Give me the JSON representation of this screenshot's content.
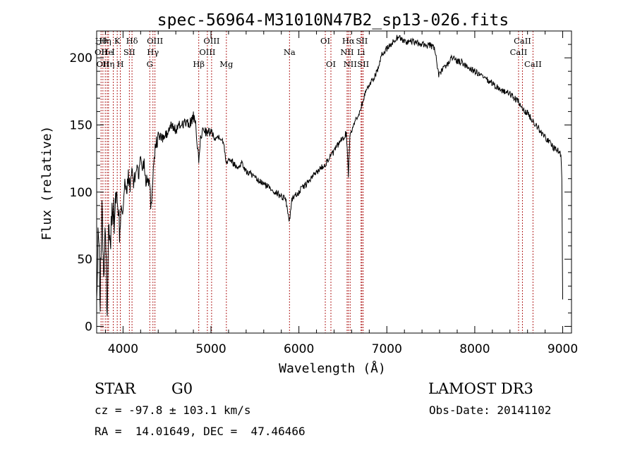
{
  "chart_data": {
    "type": "line",
    "title": "spec-56964-M31010N47B2_sp13-026.fits",
    "xlabel": "Wavelength (Å)",
    "ylabel": "Flux (relative)",
    "xlim": [
      3700,
      9100
    ],
    "ylim": [
      -5,
      220
    ],
    "xticks": [
      4000,
      5000,
      6000,
      7000,
      8000,
      9000
    ],
    "yticks": [
      0,
      50,
      100,
      150,
      200
    ],
    "grid": false,
    "line_color": "#000000",
    "marker_color": "#b22222",
    "series": [
      {
        "name": "flux",
        "points": [
          [
            3700,
            15
          ],
          [
            3720,
            75
          ],
          [
            3740,
            22
          ],
          [
            3760,
            90
          ],
          [
            3780,
            40
          ],
          [
            3800,
            68
          ],
          [
            3820,
            12
          ],
          [
            3840,
            82
          ],
          [
            3860,
            65
          ],
          [
            3880,
            93
          ],
          [
            3900,
            78
          ],
          [
            3920,
            100
          ],
          [
            3940,
            84
          ],
          [
            3960,
            72
          ],
          [
            3980,
            95
          ],
          [
            4000,
            88
          ],
          [
            4020,
            106
          ],
          [
            4040,
            98
          ],
          [
            4060,
            113
          ],
          [
            4080,
            102
          ],
          [
            4100,
            118
          ],
          [
            4120,
            106
          ],
          [
            4140,
            112
          ],
          [
            4160,
            122
          ],
          [
            4180,
            112
          ],
          [
            4200,
            127
          ],
          [
            4220,
            118
          ],
          [
            4240,
            123
          ],
          [
            4260,
            108
          ],
          [
            4280,
            113
          ],
          [
            4300,
            107
          ],
          [
            4320,
            88
          ],
          [
            4340,
            115
          ],
          [
            4360,
            131
          ],
          [
            4380,
            136
          ],
          [
            4400,
            142
          ],
          [
            4450,
            140
          ],
          [
            4500,
            143
          ],
          [
            4550,
            150
          ],
          [
            4600,
            146
          ],
          [
            4650,
            150
          ],
          [
            4700,
            152
          ],
          [
            4750,
            150
          ],
          [
            4800,
            156
          ],
          [
            4830,
            148
          ],
          [
            4861,
            121
          ],
          [
            4880,
            140
          ],
          [
            4920,
            148
          ],
          [
            4960,
            143
          ],
          [
            5000,
            146
          ],
          [
            5050,
            140
          ],
          [
            5100,
            142
          ],
          [
            5150,
            135
          ],
          [
            5175,
            121
          ],
          [
            5200,
            126
          ],
          [
            5250,
            122
          ],
          [
            5300,
            118
          ],
          [
            5350,
            122
          ],
          [
            5400,
            115
          ],
          [
            5450,
            114
          ],
          [
            5500,
            110
          ],
          [
            5550,
            108
          ],
          [
            5600,
            106
          ],
          [
            5650,
            104
          ],
          [
            5700,
            102
          ],
          [
            5750,
            99
          ],
          [
            5800,
            97
          ],
          [
            5850,
            95
          ],
          [
            5893,
            78
          ],
          [
            5920,
            95
          ],
          [
            5950,
            97
          ],
          [
            6000,
            100
          ],
          [
            6050,
            104
          ],
          [
            6100,
            107
          ],
          [
            6150,
            111
          ],
          [
            6200,
            115
          ],
          [
            6250,
            118
          ],
          [
            6300,
            121
          ],
          [
            6350,
            126
          ],
          [
            6400,
            130
          ],
          [
            6450,
            136
          ],
          [
            6500,
            140
          ],
          [
            6540,
            144
          ],
          [
            6563,
            113
          ],
          [
            6580,
            143
          ],
          [
            6620,
            150
          ],
          [
            6660,
            155
          ],
          [
            6700,
            162
          ],
          [
            6730,
            168
          ],
          [
            6760,
            175
          ],
          [
            6800,
            180
          ],
          [
            6850,
            185
          ],
          [
            6900,
            192
          ],
          [
            6950,
            203
          ],
          [
            7000,
            207
          ],
          [
            7050,
            210
          ],
          [
            7100,
            214
          ],
          [
            7130,
            216
          ],
          [
            7200,
            212
          ],
          [
            7300,
            212
          ],
          [
            7400,
            210
          ],
          [
            7500,
            209
          ],
          [
            7550,
            206
          ],
          [
            7590,
            186
          ],
          [
            7650,
            193
          ],
          [
            7700,
            196
          ],
          [
            7750,
            201
          ],
          [
            7800,
            197
          ],
          [
            7850,
            197
          ],
          [
            7900,
            194
          ],
          [
            7950,
            192
          ],
          [
            8000,
            190
          ],
          [
            8100,
            185
          ],
          [
            8200,
            181
          ],
          [
            8300,
            176
          ],
          [
            8400,
            173
          ],
          [
            8500,
            167
          ],
          [
            8542,
            161
          ],
          [
            8600,
            159
          ],
          [
            8662,
            153
          ],
          [
            8700,
            150
          ],
          [
            8750,
            145
          ],
          [
            8800,
            141
          ],
          [
            8850,
            137
          ],
          [
            8900,
            133
          ],
          [
            8950,
            131
          ],
          [
            8980,
            128
          ],
          [
            8990,
            108
          ],
          [
            9000,
            20
          ]
        ]
      }
    ],
    "line_markers": [
      {
        "wavelength": 3750,
        "labels": [
          {
            "row": 1,
            "text": "Hθ"
          },
          {
            "row": 2,
            "text": "OII"
          }
        ]
      },
      {
        "wavelength": 3771,
        "labels": [
          {
            "row": 3,
            "text": "OII"
          }
        ]
      },
      {
        "wavelength": 3798,
        "labels": [
          {
            "row": 1,
            "text": "Hη"
          }
        ]
      },
      {
        "wavelength": 3820,
        "labels": [
          {
            "row": 2,
            "text": "He"
          }
        ]
      },
      {
        "wavelength": 3835,
        "labels": [
          {
            "row": 3,
            "text": "Hη"
          }
        ]
      },
      {
        "wavelength": 3889,
        "labels": [
          {
            "row": 2,
            "text": "I"
          }
        ]
      },
      {
        "wavelength": 3934,
        "labels": [
          {
            "row": 1,
            "text": "K"
          }
        ]
      },
      {
        "wavelength": 3969,
        "labels": [
          {
            "row": 3,
            "text": "H"
          }
        ]
      },
      {
        "wavelength": 4072,
        "labels": [
          {
            "row": 2,
            "text": "SII"
          }
        ]
      },
      {
        "wavelength": 4102,
        "labels": [
          {
            "row": 1,
            "text": "Hδ"
          }
        ]
      },
      {
        "wavelength": 4304,
        "labels": [
          {
            "row": 3,
            "text": "G"
          }
        ]
      },
      {
        "wavelength": 4340,
        "labels": [
          {
            "row": 2,
            "text": "Hγ"
          }
        ]
      },
      {
        "wavelength": 4363,
        "labels": [
          {
            "row": 1,
            "text": "OIII"
          }
        ]
      },
      {
        "wavelength": 4861,
        "labels": [
          {
            "row": 3,
            "text": "Hβ"
          }
        ]
      },
      {
        "wavelength": 4959,
        "labels": [
          {
            "row": 2,
            "text": "OIII"
          }
        ]
      },
      {
        "wavelength": 5007,
        "labels": [
          {
            "row": 1,
            "text": "OIII"
          }
        ]
      },
      {
        "wavelength": 5175,
        "labels": [
          {
            "row": 3,
            "text": "Mg"
          }
        ]
      },
      {
        "wavelength": 5893,
        "labels": [
          {
            "row": 2,
            "text": "Na"
          }
        ]
      },
      {
        "wavelength": 6300,
        "labels": [
          {
            "row": 1,
            "text": "OI"
          }
        ]
      },
      {
        "wavelength": 6364,
        "labels": [
          {
            "row": 3,
            "text": "OI"
          }
        ]
      },
      {
        "wavelength": 6548,
        "labels": [
          {
            "row": 2,
            "text": "NII"
          }
        ]
      },
      {
        "wavelength": 6563,
        "labels": [
          {
            "row": 1,
            "text": "Hα"
          }
        ]
      },
      {
        "wavelength": 6583,
        "labels": [
          {
            "row": 3,
            "text": "NII"
          }
        ]
      },
      {
        "wavelength": 6707,
        "labels": [
          {
            "row": 2,
            "text": "Li"
          }
        ]
      },
      {
        "wavelength": 6716,
        "labels": [
          {
            "row": 1,
            "text": "SII"
          }
        ]
      },
      {
        "wavelength": 6731,
        "labels": [
          {
            "row": 3,
            "text": "SII"
          }
        ]
      },
      {
        "wavelength": 8498,
        "labels": [
          {
            "row": 2,
            "text": "CaII"
          }
        ]
      },
      {
        "wavelength": 8542,
        "labels": [
          {
            "row": 1,
            "text": "CaII"
          }
        ]
      },
      {
        "wavelength": 8662,
        "labels": [
          {
            "row": 3,
            "text": "CaII"
          }
        ]
      }
    ]
  },
  "info": {
    "class_label": "STAR",
    "subclass": "G0",
    "survey": "LAMOST DR3",
    "redshift_line": "cz = -97.8 ± 103.1 km/s",
    "obs_date_line": "Obs-Date: 20141102",
    "coords_line": "RA =  14.01649, DEC =  47.46466"
  }
}
